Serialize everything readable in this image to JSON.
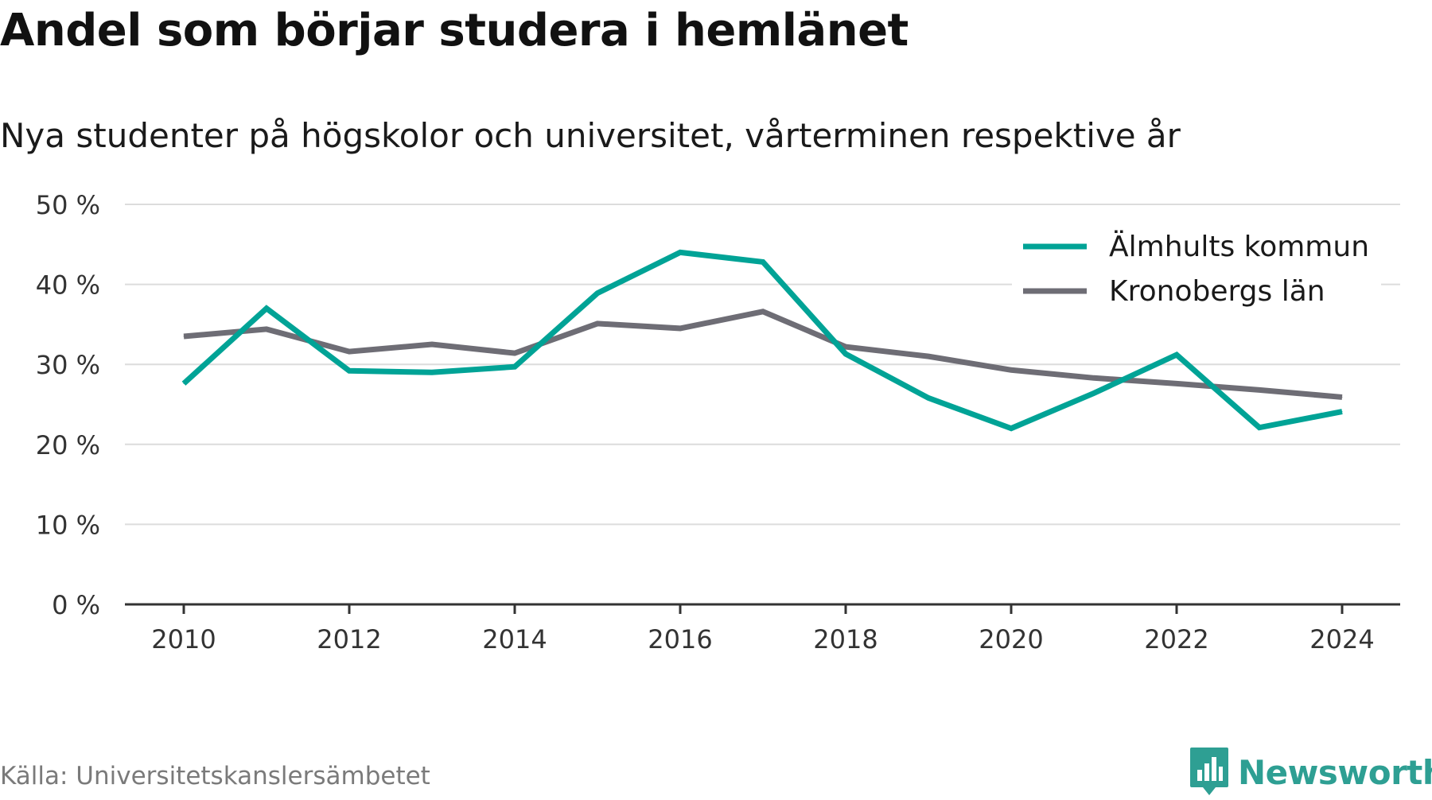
{
  "title": "Andel som börjar studera i hemlänet",
  "subtitle": "Nya studenter på högskolor och universitet, vårterminen respektive år",
  "source": "Källa: Universitetskanslersämbetet",
  "brand": {
    "name": "Newsworthy",
    "icon": "newsworthy-logo-icon",
    "color": "#2e9f93"
  },
  "chart_data": {
    "type": "line",
    "title": "Andel som börjar studera i hemlänet",
    "subtitle": "Nya studenter på högskolor och universitet, vårterminen respektive år",
    "x": [
      2010,
      2011,
      2012,
      2013,
      2014,
      2015,
      2016,
      2017,
      2018,
      2019,
      2020,
      2021,
      2022,
      2023,
      2024
    ],
    "xticks": [
      "2010",
      "2012",
      "2014",
      "2016",
      "2018",
      "2020",
      "2022",
      "2024"
    ],
    "yticks": [
      "0 %",
      "10 %",
      "20 %",
      "30 %",
      "40 %",
      "50 %"
    ],
    "ylim": [
      0,
      50
    ],
    "grid": true,
    "legend": "top-right",
    "series": [
      {
        "name": "Älmhults kommun",
        "color": "#00a396",
        "values": [
          27.6,
          37.0,
          29.2,
          29.0,
          29.7,
          38.9,
          44.0,
          42.8,
          31.3,
          25.8,
          22.0,
          26.4,
          31.2,
          22.1,
          24.1
        ]
      },
      {
        "name": "Kronobergs län",
        "color": "#6e6d75",
        "values": [
          33.5,
          34.4,
          31.6,
          32.5,
          31.4,
          35.1,
          34.5,
          36.6,
          32.2,
          31.0,
          29.3,
          28.3,
          27.6,
          26.8,
          25.9
        ]
      }
    ]
  }
}
